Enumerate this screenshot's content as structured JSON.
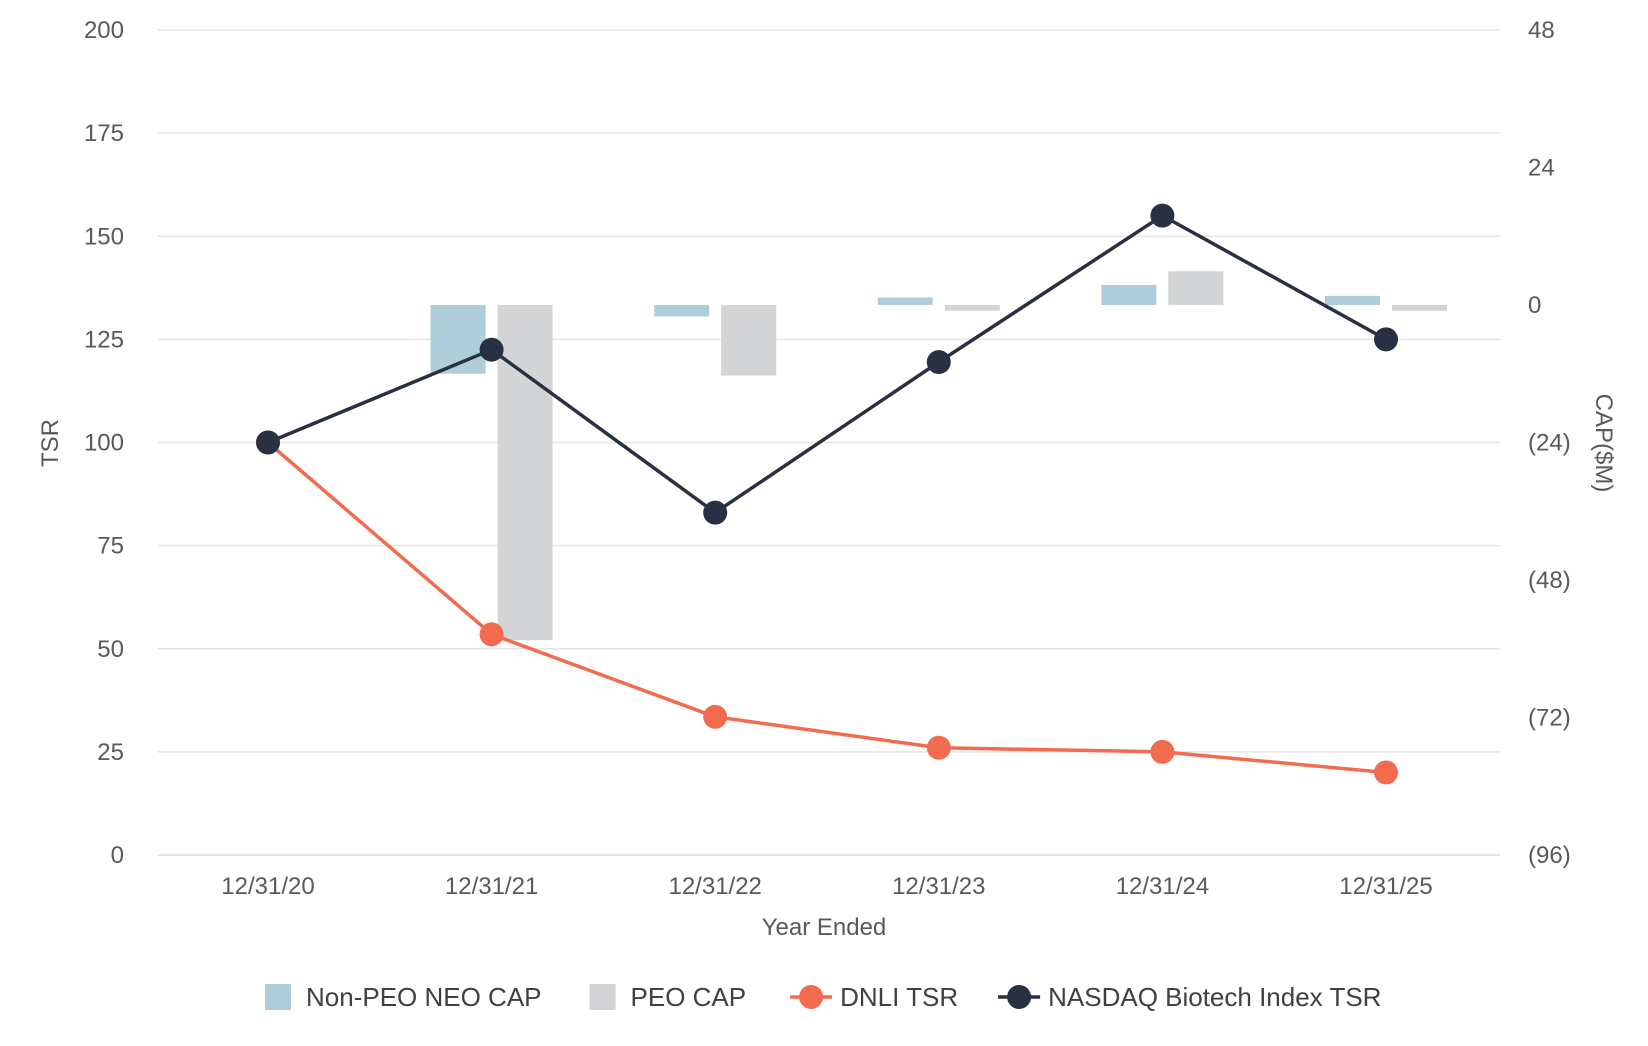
{
  "chart_data": {
    "type": "bar+line",
    "xlabel": "Year Ended",
    "ylabel_left": "TSR",
    "ylabel_right": "CAP($M)",
    "categories": [
      "12/31/20",
      "12/31/21",
      "12/31/22",
      "12/31/23",
      "12/31/24",
      "12/31/25"
    ],
    "left_axis": {
      "min": 0,
      "max": 200,
      "ticks": [
        0,
        25,
        50,
        75,
        100,
        125,
        150,
        175,
        200
      ]
    },
    "right_axis": {
      "min": -96,
      "max": 48,
      "ticks": [
        -96,
        -72,
        -48,
        -24,
        0,
        24,
        48
      ],
      "tick_labels": [
        "(96)",
        "(72)",
        "(48)",
        "(24)",
        "0",
        "24",
        "48"
      ]
    },
    "bar_series": [
      {
        "name": "Non-PEO NEO CAP",
        "color": "#aecfd9",
        "axis": "right",
        "values": [
          null,
          -12.0,
          -2.0,
          1.3,
          3.5,
          1.6
        ]
      },
      {
        "name": "PEO CAP",
        "color": "#d3d4d5",
        "axis": "right",
        "values": [
          null,
          -58.5,
          -12.3,
          -1.0,
          5.9,
          -1.0
        ]
      }
    ],
    "line_series": [
      {
        "name": "DNLI TSR",
        "color": "#f26b4f",
        "axis": "left",
        "values": [
          100,
          53.5,
          33.5,
          26,
          25,
          20
        ]
      },
      {
        "name": "NASDAQ Biotech Index TSR",
        "color": "#283142",
        "axis": "left",
        "values": [
          100,
          122.5,
          83,
          119.5,
          155,
          125
        ]
      }
    ],
    "grid": true,
    "legend_position": "bottom"
  }
}
